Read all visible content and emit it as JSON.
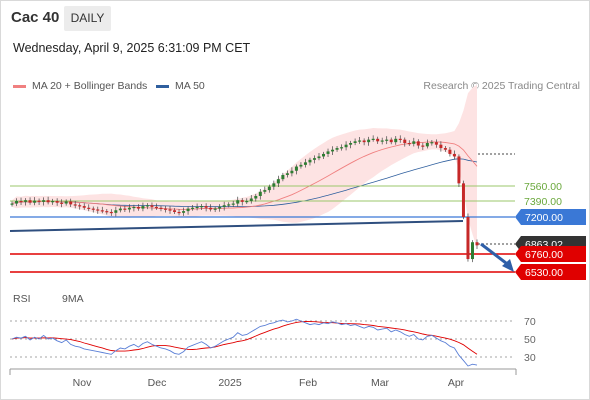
{
  "header": {
    "title": "Cac 40",
    "timeframe_tab": "DAILY"
  },
  "datetime": "Wednesday, April 9, 2025 6:31:09 PM CET",
  "legend": {
    "ma20_label": "MA 20 + Bollinger Bands",
    "ma50_label": "MA 50",
    "copyright": "Research © 2025 Trading Central"
  },
  "rsi_legend": {
    "rsi_label": "RSI",
    "ma9_label": "9MA"
  },
  "colors": {
    "ma20": "#f08080",
    "ma50": "#2f5f9e",
    "bollinger": "#fde3e3",
    "resistance": "#9bc76b",
    "support": "#e00000",
    "pivot": "#3a78d6",
    "candle_up": "#2e7d32",
    "candle_down": "#c62828",
    "rsi": "#5a7fd6",
    "rsi_ma": "#e00000"
  },
  "price_levels": {
    "resistance_1": "7560.00",
    "resistance_2": "7390.00",
    "pivot": "7200.00",
    "last_price": "6863.02",
    "support_1": "6760.00",
    "support_2": "6530.00"
  },
  "rsi_levels": [
    "70",
    "50",
    "30"
  ],
  "x_axis": [
    "Nov",
    "Dec",
    "2025",
    "Feb",
    "Mar",
    "Apr"
  ],
  "chart_data": {
    "type": "candlestick",
    "y_range": [
      6300,
      8300
    ],
    "closes": [
      7360,
      7390,
      7380,
      7400,
      7370,
      7395,
      7380,
      7400,
      7375,
      7390,
      7370,
      7360,
      7385,
      7350,
      7340,
      7330,
      7310,
      7300,
      7290,
      7280,
      7270,
      7260,
      7250,
      7280,
      7300,
      7290,
      7310,
      7320,
      7300,
      7330,
      7340,
      7320,
      7310,
      7300,
      7290,
      7280,
      7260,
      7250,
      7270,
      7300,
      7310,
      7320,
      7330,
      7310,
      7290,
      7300,
      7320,
      7340,
      7350,
      7360,
      7400,
      7380,
      7390,
      7420,
      7450,
      7500,
      7520,
      7560,
      7600,
      7650,
      7700,
      7720,
      7750,
      7800,
      7820,
      7850,
      7880,
      7900,
      7920,
      7950,
      7980,
      8000,
      8020,
      8030,
      8060,
      8080,
      8100,
      8110,
      8090,
      8120,
      8130,
      8100,
      8110,
      8120,
      8090,
      8130,
      8120,
      8080,
      8070,
      8100,
      8050,
      8040,
      8080,
      8090,
      8060,
      8020,
      8000,
      7950,
      7920,
      7600,
      7200,
      6700,
      6900,
      6863
    ],
    "rsi": [
      50,
      52,
      51,
      53,
      49,
      52,
      50,
      54,
      50,
      51,
      48,
      46,
      49,
      44,
      42,
      41,
      39,
      38,
      37,
      36,
      35,
      34,
      33,
      37,
      40,
      39,
      42,
      44,
      41,
      45,
      47,
      44,
      42,
      40,
      39,
      37,
      34,
      33,
      36,
      41,
      43,
      45,
      47,
      44,
      40,
      42,
      45,
      48,
      50,
      52,
      57,
      54,
      55,
      58,
      61,
      64,
      65,
      67,
      68,
      70,
      71,
      69,
      70,
      72,
      70,
      68,
      66,
      67,
      66,
      68,
      67,
      69,
      68,
      66,
      67,
      65,
      66,
      64,
      62,
      64,
      63,
      60,
      61,
      62,
      58,
      60,
      58,
      55,
      53,
      55,
      50,
      49,
      53,
      54,
      51,
      48,
      46,
      42,
      40,
      32,
      26,
      20,
      22,
      21
    ]
  }
}
